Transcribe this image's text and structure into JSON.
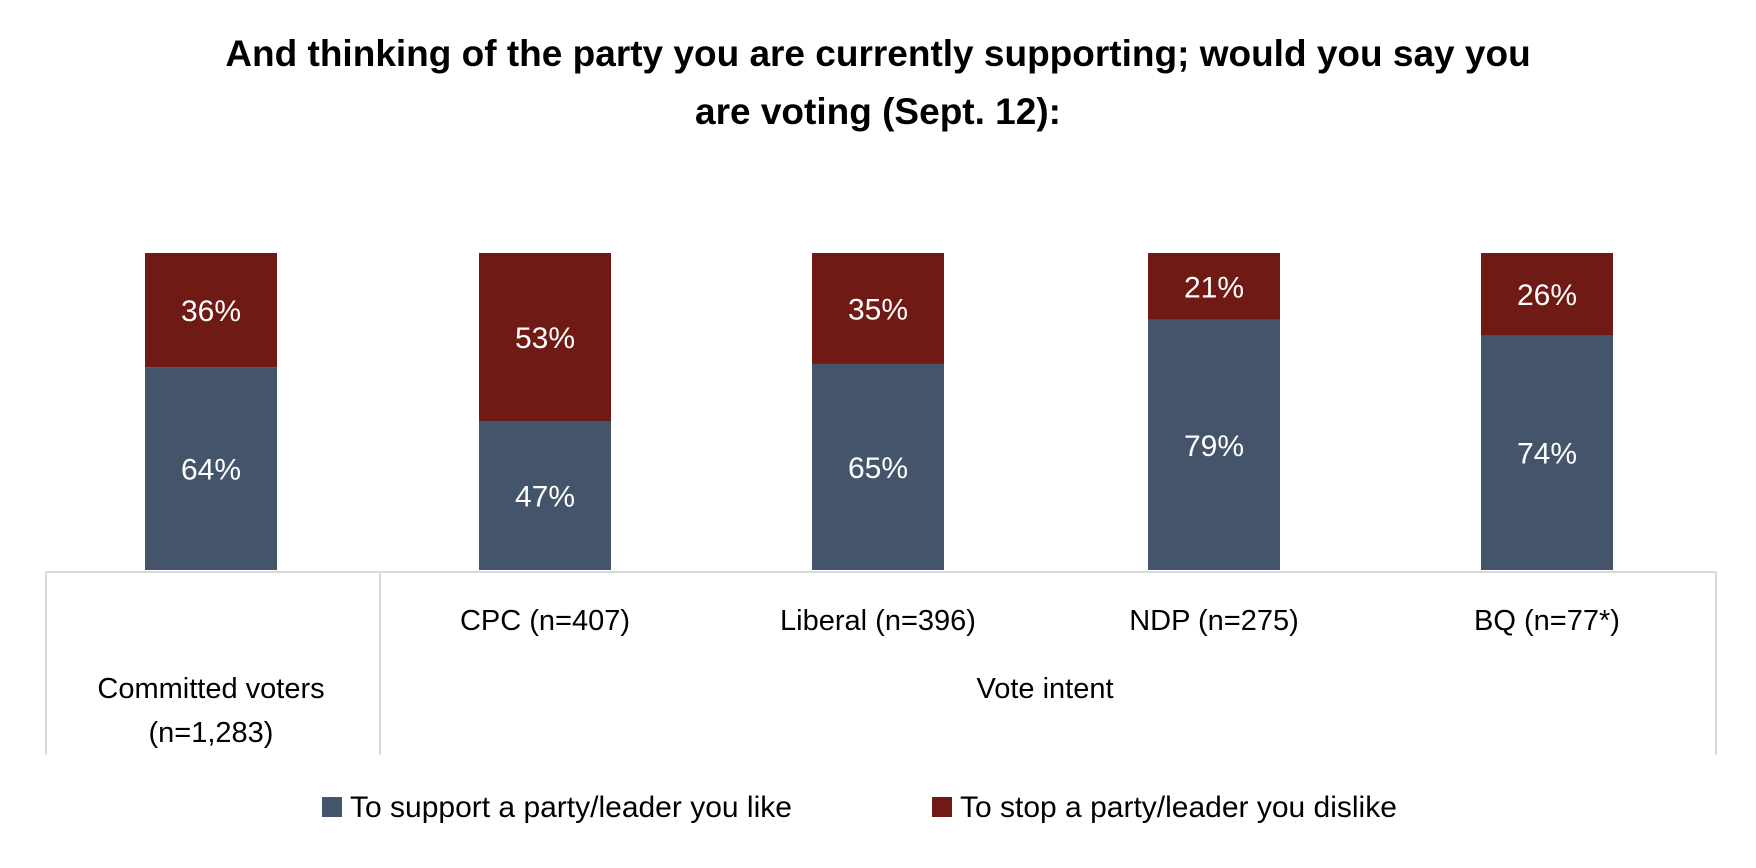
{
  "chart_data": {
    "type": "bar",
    "stacked": true,
    "title": "And thinking of the party you are currently supporting; would you say you are voting (Sept. 12):",
    "title_lines": [
      "And thinking of the party you are currently supporting; would you say you",
      "are voting (Sept. 12):"
    ],
    "ylim": [
      0,
      100
    ],
    "grid": false,
    "legend_position": "bottom",
    "categories": [
      [
        "Committed voters",
        "(n=1,283)"
      ],
      [
        "CPC (n=407)"
      ],
      [
        "Liberal (n=396)"
      ],
      [
        "NDP (n=275)"
      ],
      [
        "BQ (n=77*)"
      ]
    ],
    "groups": [
      {
        "label": "",
        "span": 1
      },
      {
        "label": "Vote intent",
        "span": 4
      }
    ],
    "series": [
      {
        "name": "To support a party/leader you like",
        "color": "#44546a",
        "values": [
          64,
          47,
          65,
          79,
          74
        ],
        "labels": [
          "64%",
          "47%",
          "65%",
          "79%",
          "74%"
        ]
      },
      {
        "name": "To stop a party/leader you dislike",
        "color": "#701a16",
        "values": [
          36,
          53,
          35,
          21,
          26
        ],
        "labels": [
          "36%",
          "53%",
          "35%",
          "21%",
          "26%"
        ]
      }
    ]
  }
}
